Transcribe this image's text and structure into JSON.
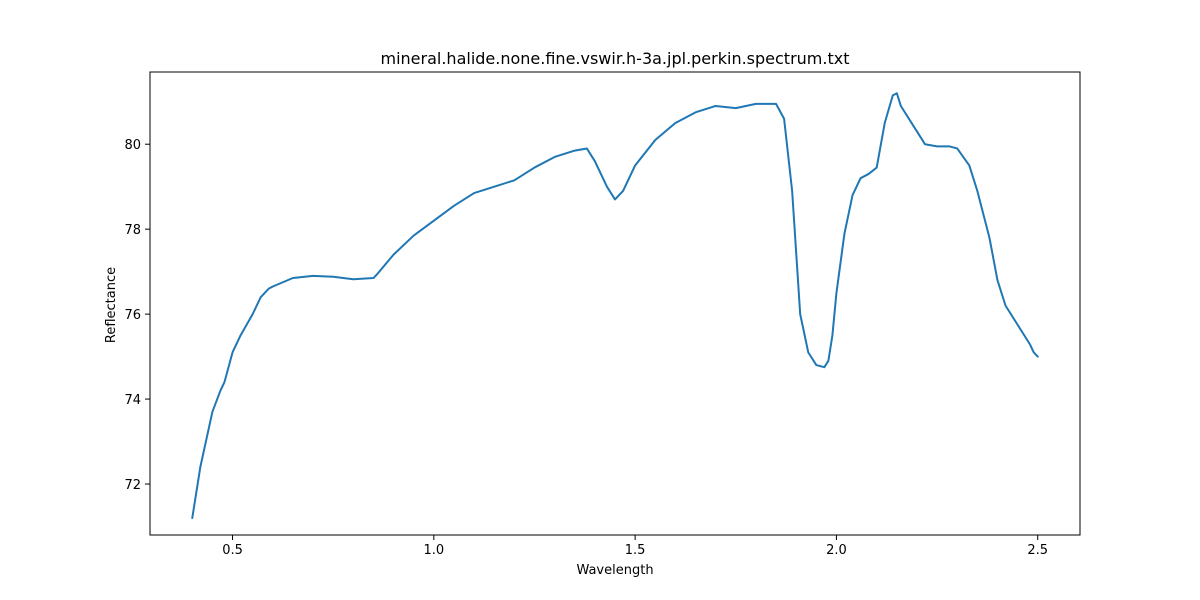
{
  "chart_data": {
    "type": "line",
    "title": "mineral.halide.none.fine.vswir.h-3a.jpl.perkin.spectrum.txt",
    "xlabel": "Wavelength",
    "ylabel": "Reflectance",
    "xlim": [
      0.295,
      2.605
    ],
    "ylim": [
      70.8,
      81.7
    ],
    "xticks": [
      0.5,
      1.0,
      1.5,
      2.0,
      2.5
    ],
    "xtick_labels": [
      "0.5",
      "1.0",
      "1.5",
      "2.0",
      "2.5"
    ],
    "yticks": [
      72,
      74,
      76,
      78,
      80
    ],
    "ytick_labels": [
      "72",
      "74",
      "76",
      "78",
      "80"
    ],
    "grid": false,
    "line_color": "#1f77b4",
    "series": [
      {
        "x": [
          0.4,
          0.42,
          0.45,
          0.47,
          0.48,
          0.5,
          0.52,
          0.55,
          0.57,
          0.59,
          0.6,
          0.65,
          0.7,
          0.75,
          0.8,
          0.85,
          0.86,
          0.9,
          0.95,
          1.0,
          1.05,
          1.1,
          1.15,
          1.2,
          1.25,
          1.3,
          1.35,
          1.38,
          1.4,
          1.43,
          1.45,
          1.47,
          1.5,
          1.55,
          1.6,
          1.65,
          1.7,
          1.75,
          1.8,
          1.85,
          1.87,
          1.89,
          1.91,
          1.93,
          1.95,
          1.97,
          1.98,
          1.99,
          2.0,
          2.02,
          2.04,
          2.06,
          2.08,
          2.1,
          2.12,
          2.14,
          2.15,
          2.16,
          2.18,
          2.2,
          2.22,
          2.25,
          2.28,
          2.3,
          2.33,
          2.35,
          2.38,
          2.4,
          2.42,
          2.44,
          2.46,
          2.48,
          2.49,
          2.5
        ],
        "y": [
          71.2,
          72.4,
          73.7,
          74.2,
          74.4,
          75.1,
          75.5,
          76.0,
          76.4,
          76.6,
          76.65,
          76.85,
          76.9,
          76.88,
          76.82,
          76.85,
          76.95,
          77.4,
          77.85,
          78.2,
          78.55,
          78.85,
          79.0,
          79.15,
          79.45,
          79.7,
          79.85,
          79.9,
          79.6,
          79.0,
          78.7,
          78.9,
          79.5,
          80.1,
          80.5,
          80.75,
          80.9,
          80.85,
          80.95,
          80.95,
          80.6,
          78.9,
          76.0,
          75.1,
          74.8,
          74.75,
          74.9,
          75.5,
          76.5,
          77.9,
          78.8,
          79.2,
          79.3,
          79.45,
          80.5,
          81.15,
          81.2,
          80.9,
          80.6,
          80.3,
          80.0,
          79.95,
          79.95,
          79.9,
          79.5,
          78.9,
          77.8,
          76.8,
          76.2,
          75.9,
          75.6,
          75.3,
          75.1,
          75.0
        ]
      }
    ]
  }
}
